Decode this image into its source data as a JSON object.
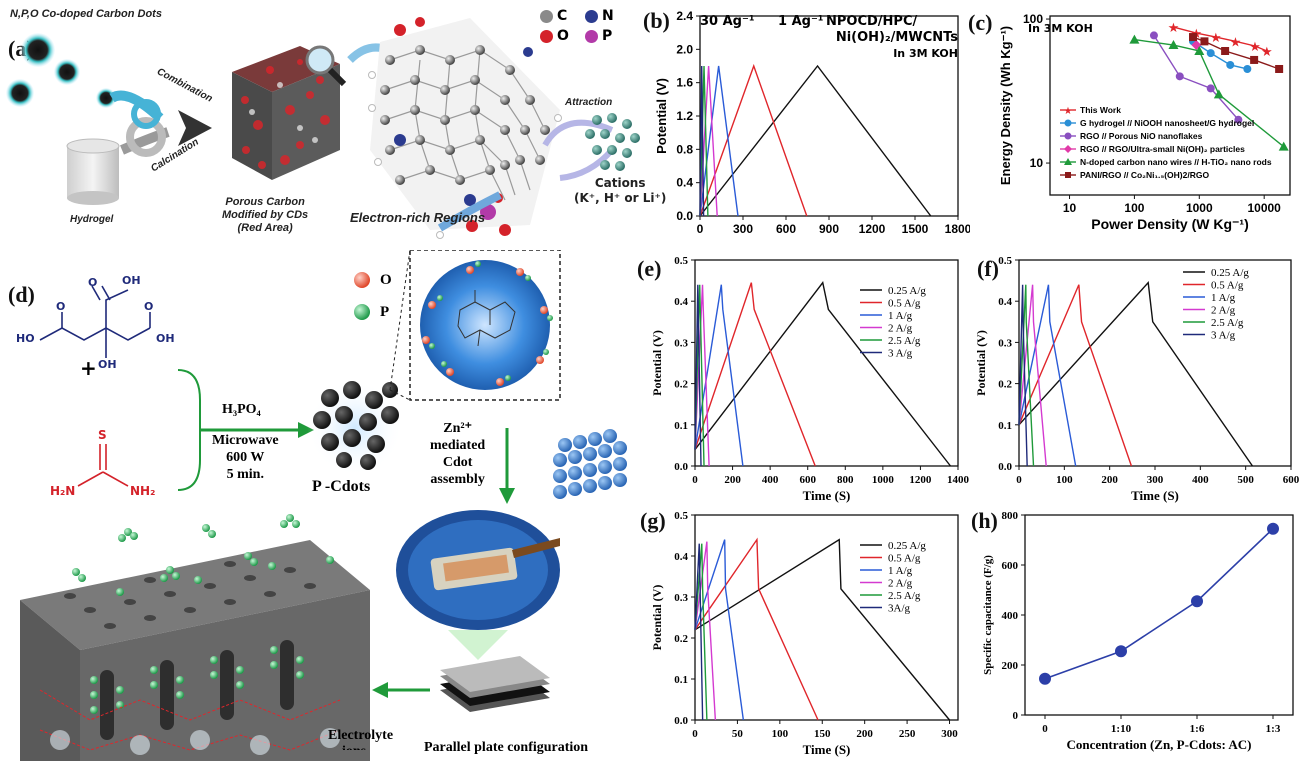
{
  "panel_a": {
    "label": "(a)",
    "title": "N,P,O Co-doped Carbon Dots",
    "hydrogel": "Hydrogel",
    "combination": "Combination",
    "calcination": "Calcination",
    "porous_carbon": [
      "Porous Carbon",
      "Modified by CDs",
      "(Red Area)"
    ],
    "element_legend": [
      {
        "sym": "C",
        "color": "#8a8a8a"
      },
      {
        "sym": "N",
        "color": "#2b3b8f"
      },
      {
        "sym": "O",
        "color": "#d4222a"
      },
      {
        "sym": "P",
        "color": "#b23aa8"
      }
    ],
    "attraction": "Attraction",
    "cations": "Cations",
    "cation_list": "(K⁺, H⁺ or Li⁺)",
    "electron_rich": "Electron-rich Regions"
  },
  "panel_d": {
    "label": "(d)",
    "legend_o": "O",
    "legend_p": "P",
    "plus": "+",
    "reagent": "H₃PO₄",
    "conditions": [
      "Microwave",
      "600 W",
      "5 min."
    ],
    "product": "P -Cdots",
    "zn_line": [
      "Zn²⁺",
      "mediated",
      "Cdot",
      "assembly"
    ],
    "electrolyte": [
      "Electrolyte",
      "ions"
    ],
    "parallel": "Parallel plate configuration",
    "citric": {
      "oh1": "OH",
      "oh2": "OH",
      "ho": "HO",
      "oh3": "OH",
      "o1": "O",
      "o2": "O",
      "o3": "O"
    },
    "thiourea": {
      "s": "S",
      "h2n": "H₂N",
      "nh2": "NH₂"
    }
  },
  "panel_b": {
    "label": "(b)",
    "ann_30": "30 Ag⁻¹",
    "ann_1": "1 Ag⁻¹",
    "ann_name": [
      "NPOCD/HPC/",
      "Ni(OH)₂/MWCNTs",
      "In 3M KOH"
    ]
  },
  "panel_c": {
    "label": "(c)",
    "ann": "In 3M KOH"
  },
  "panel_e": {
    "label": "(e)"
  },
  "panel_f": {
    "label": "(f)"
  },
  "panel_g": {
    "label": "(g)"
  },
  "panel_h": {
    "label": "(h)"
  },
  "chart_data": [
    {
      "id": "b",
      "type": "line",
      "xlabel": "",
      "ylabel": "Potential (V)",
      "xlim": [
        0,
        1800
      ],
      "ylim": [
        0,
        2.4
      ],
      "xticks": [
        0,
        300,
        600,
        900,
        1200,
        1500,
        1800
      ],
      "yticks": [
        0.0,
        0.4,
        0.8,
        1.2,
        1.6,
        2.0,
        2.4
      ],
      "series": [
        {
          "color": "#111111",
          "points": [
            [
              0,
              0
            ],
            [
              820,
              1.8
            ],
            [
              1610,
              0
            ]
          ]
        },
        {
          "color": "#e0262b",
          "points": [
            [
              0,
              0
            ],
            [
              375,
              1.8
            ],
            [
              745,
              0
            ]
          ]
        },
        {
          "color": "#2a5bd7",
          "points": [
            [
              0,
              0
            ],
            [
              130,
              1.8
            ],
            [
              265,
              0
            ]
          ]
        },
        {
          "color": "#d43ad0",
          "points": [
            [
              0,
              0
            ],
            [
              60,
              1.8
            ],
            [
              120,
              0
            ]
          ]
        },
        {
          "color": "#1f9a3a",
          "points": [
            [
              0,
              0
            ],
            [
              28,
              1.8
            ],
            [
              55,
              0
            ]
          ]
        },
        {
          "color": "#1f2a7a",
          "points": [
            [
              0,
              0
            ],
            [
              12,
              1.8
            ],
            [
              25,
              0
            ]
          ]
        }
      ]
    },
    {
      "id": "c",
      "type": "line",
      "xlabel": "Power Density (W Kg⁻¹)",
      "ylabel": "Energy Density (Wh Kg⁻¹)",
      "xscale": "log",
      "yscale": "log",
      "xlim": [
        5,
        25000
      ],
      "ylim": [
        6,
        105
      ],
      "xticks": [
        10,
        100,
        1000,
        10000
      ],
      "yticks": [
        10,
        100
      ],
      "legend_position": "bottom-left",
      "series": [
        {
          "name": "This Work",
          "color": "#e0262b",
          "marker": "star",
          "points": [
            [
              400,
              88
            ],
            [
              900,
              80
            ],
            [
              1800,
              75
            ],
            [
              3600,
              70
            ],
            [
              7200,
              65
            ],
            [
              11000,
              60
            ]
          ]
        },
        {
          "name": "G hydrogel // NiOOH nanosheet/G hydrogel",
          "color": "#2a8fd6",
          "marker": "circle",
          "points": [
            [
              800,
              70
            ],
            [
              1500,
              58
            ],
            [
              3000,
              48
            ],
            [
              5500,
              45
            ]
          ]
        },
        {
          "name": "RGO // Porous NiO nanoflakes",
          "color": "#8a4fc0",
          "marker": "circle",
          "points": [
            [
              200,
              77
            ],
            [
              500,
              40
            ],
            [
              1500,
              33
            ],
            [
              4000,
              20
            ]
          ]
        },
        {
          "name": "RGO // RGO/Ultra-small Ni(OH)₂ particles",
          "color": "#e13aa8",
          "marker": "diamond",
          "points": [
            [
              900,
              66
            ]
          ]
        },
        {
          "name": "N-doped carbon nano wires // H-TiO₂ nano rods",
          "color": "#1f9a3a",
          "marker": "triangle",
          "points": [
            [
              100,
              72
            ],
            [
              400,
              66
            ],
            [
              1000,
              60
            ],
            [
              2000,
              30
            ],
            [
              20000,
              13
            ]
          ]
        },
        {
          "name": "PANI/RGO // Co₂Ni₁.₅(OH)2/RGO",
          "color": "#8b1a1a",
          "marker": "square",
          "points": [
            [
              800,
              75
            ],
            [
              1200,
              70
            ],
            [
              2500,
              60
            ],
            [
              7000,
              52
            ],
            [
              17000,
              45
            ]
          ]
        }
      ]
    },
    {
      "id": "e",
      "type": "line",
      "xlabel": "Time (S)",
      "ylabel": "Potential (V)",
      "xlim": [
        0,
        1400
      ],
      "ylim": [
        0,
        0.5
      ],
      "xticks": [
        0,
        200,
        400,
        600,
        800,
        1000,
        1200,
        1400
      ],
      "yticks": [
        0.0,
        0.1,
        0.2,
        0.3,
        0.4,
        0.5
      ],
      "series": [
        {
          "name": "0.25 A/g",
          "color": "#111111",
          "points": [
            [
              0,
              0.04
            ],
            [
              680,
              0.445
            ],
            [
              710,
              0.38
            ],
            [
              1360,
              0
            ]
          ]
        },
        {
          "name": "0.5 A/g",
          "color": "#e0262b",
          "points": [
            [
              0,
              0.04
            ],
            [
              300,
              0.445
            ],
            [
              315,
              0.38
            ],
            [
              640,
              0
            ]
          ]
        },
        {
          "name": "1 A/g",
          "color": "#2a5bd7",
          "points": [
            [
              0,
              0.04
            ],
            [
              140,
              0.44
            ],
            [
              148,
              0.38
            ],
            [
              255,
              0
            ]
          ]
        },
        {
          "name": "2 A/g",
          "color": "#d43ad0",
          "points": [
            [
              0,
              0.04
            ],
            [
              40,
              0.44
            ],
            [
              44,
              0.38
            ],
            [
              75,
              0
            ]
          ]
        },
        {
          "name": "2.5 A/g",
          "color": "#1f9a3a",
          "points": [
            [
              0,
              0.04
            ],
            [
              25,
              0.44
            ],
            [
              28,
              0.38
            ],
            [
              48,
              0
            ]
          ]
        },
        {
          "name": "3 A/g",
          "color": "#1f2a7a",
          "points": [
            [
              0,
              0.04
            ],
            [
              15,
              0.44
            ],
            [
              17,
              0.38
            ],
            [
              32,
              0
            ]
          ]
        }
      ]
    },
    {
      "id": "f",
      "type": "line",
      "xlabel": "Time (S)",
      "ylabel": "Potential (V)",
      "xlim": [
        0,
        600
      ],
      "ylim": [
        0,
        0.5
      ],
      "xticks": [
        0,
        100,
        200,
        300,
        400,
        500,
        600
      ],
      "yticks": [
        0.0,
        0.1,
        0.2,
        0.3,
        0.4,
        0.5
      ],
      "series": [
        {
          "name": "0.25 A/g",
          "color": "#111111",
          "points": [
            [
              0,
              0.1
            ],
            [
              285,
              0.445
            ],
            [
              295,
              0.35
            ],
            [
              515,
              0
            ]
          ]
        },
        {
          "name": "0.5 A/g",
          "color": "#e0262b",
          "points": [
            [
              0,
              0.1
            ],
            [
              132,
              0.44
            ],
            [
              138,
              0.35
            ],
            [
              248,
              0
            ]
          ]
        },
        {
          "name": "1 A/g",
          "color": "#2a5bd7",
          "points": [
            [
              0,
              0.1
            ],
            [
              65,
              0.44
            ],
            [
              68,
              0.35
            ],
            [
              125,
              0
            ]
          ]
        },
        {
          "name": "2 A/g",
          "color": "#d43ad0",
          "points": [
            [
              0,
              0.1
            ],
            [
              30,
              0.44
            ],
            [
              32,
              0.35
            ],
            [
              60,
              0
            ]
          ]
        },
        {
          "name": "2.5 A/g",
          "color": "#1f9a3a",
          "points": [
            [
              0,
              0.1
            ],
            [
              15,
              0.44
            ],
            [
              16,
              0.35
            ],
            [
              32,
              0
            ]
          ]
        },
        {
          "name": "3 A/g",
          "color": "#1f2a7a",
          "points": [
            [
              0,
              0.1
            ],
            [
              8,
              0.44
            ],
            [
              9,
              0.35
            ],
            [
              18,
              0
            ]
          ]
        }
      ]
    },
    {
      "id": "g",
      "type": "line",
      "xlabel": "Time (S)",
      "ylabel": "Potential (V)",
      "xlim": [
        0,
        310
      ],
      "ylim": [
        0,
        0.5
      ],
      "xticks": [
        0,
        50,
        100,
        150,
        200,
        250,
        300
      ],
      "yticks": [
        0.0,
        0.1,
        0.2,
        0.3,
        0.4,
        0.5
      ],
      "series": [
        {
          "name": "0.25 A/g",
          "color": "#111111",
          "points": [
            [
              0,
              0.22
            ],
            [
              170,
              0.44
            ],
            [
              172,
              0.32
            ],
            [
              300,
              0
            ]
          ]
        },
        {
          "name": "0.5 A/g",
          "color": "#e0262b",
          "points": [
            [
              0,
              0.22
            ],
            [
              73,
              0.44
            ],
            [
              75,
              0.32
            ],
            [
              145,
              0
            ]
          ]
        },
        {
          "name": "1 A/g",
          "color": "#2a5bd7",
          "points": [
            [
              0,
              0.22
            ],
            [
              35,
              0.44
            ],
            [
              36,
              0.32
            ],
            [
              57,
              0
            ]
          ]
        },
        {
          "name": "2 A/g",
          "color": "#d43ad0",
          "points": [
            [
              0,
              0.22
            ],
            [
              14,
              0.435
            ],
            [
              15,
              0.32
            ],
            [
              24,
              0
            ]
          ]
        },
        {
          "name": "2.5 A/g",
          "color": "#1f9a3a",
          "points": [
            [
              0,
              0.22
            ],
            [
              8,
              0.43
            ],
            [
              9,
              0.32
            ],
            [
              14,
              0
            ]
          ]
        },
        {
          "name": "3A/g",
          "color": "#1f2a7a",
          "points": [
            [
              0,
              0.22
            ],
            [
              5,
              0.43
            ],
            [
              6,
              0.32
            ],
            [
              9,
              0
            ]
          ]
        }
      ]
    },
    {
      "id": "h",
      "type": "line",
      "xlabel": "Concentration (Zn, P-Cdots: AC)",
      "ylabel": "Specific capacitance (F/g)",
      "categories": [
        "0",
        "1:10",
        "1:6",
        "1:3"
      ],
      "ylim": [
        0,
        800
      ],
      "yticks": [
        0,
        200,
        400,
        600,
        800
      ],
      "series": [
        {
          "color": "#2c3fa8",
          "values": [
            145,
            255,
            455,
            745
          ]
        }
      ]
    }
  ]
}
